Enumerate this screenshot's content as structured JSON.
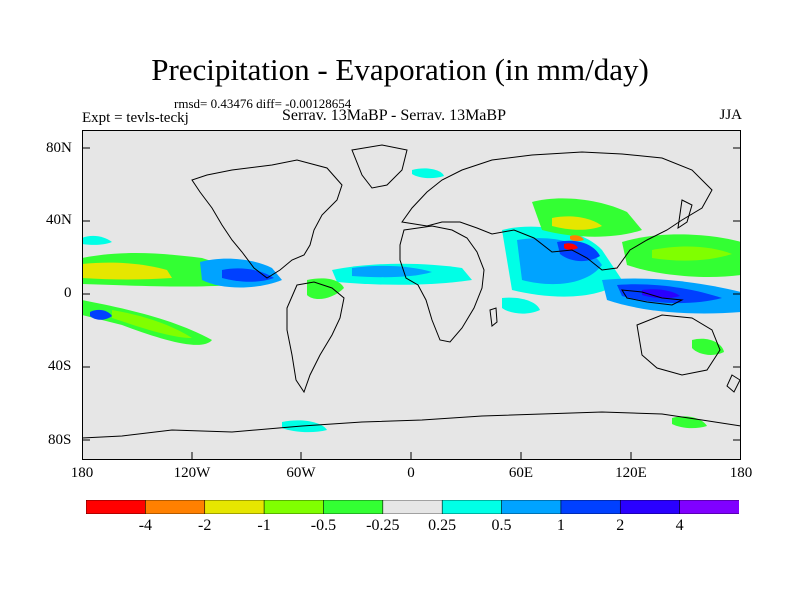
{
  "title": "Precipitation - Evaporation (in mm/day)",
  "stats": "rmsd= 0.43476 diff= -0.00128654",
  "experiment": "Expt = tevls-teckj",
  "comparison": "Serrav.   13MaBP - Serrav.   13MaBP",
  "season": "JJA",
  "lat_labels": [
    "80N",
    "40N",
    "0",
    "40S",
    "80S"
  ],
  "lon_labels": [
    "180",
    "120W",
    "60W",
    "0",
    "60E",
    "120E",
    "180"
  ],
  "colorbar": {
    "colors": [
      "#ff0000",
      "#ff8000",
      "#e6e600",
      "#80ff00",
      "#33ff33",
      "#e6e6e6",
      "#00ffe6",
      "#00a3ff",
      "#0040ff",
      "#2a00ff",
      "#8000ff"
    ],
    "labels": [
      "-4",
      "-2",
      "-1",
      "-0.5",
      "-0.25",
      "0.25",
      "0.5",
      "1",
      "2",
      "4"
    ]
  },
  "colors": {
    "background": "#e6e6e6",
    "coast": "#000000"
  }
}
